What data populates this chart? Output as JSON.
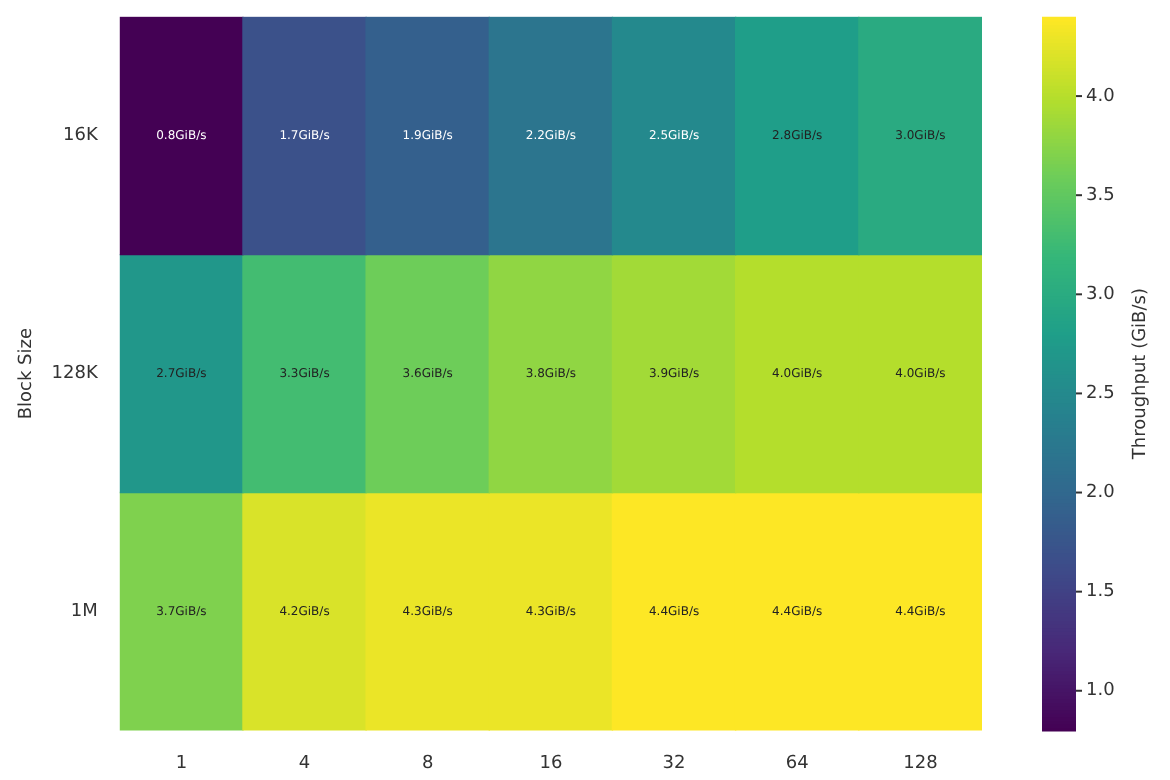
{
  "chart_data": {
    "type": "heatmap",
    "ylabel": "Block Size",
    "clabel": "Throughput (GiB/s)",
    "categories": [
      "1",
      "4",
      "8",
      "16",
      "32",
      "64",
      "128"
    ],
    "y_categories": [
      "16K",
      "128K",
      "1M"
    ],
    "cells": [
      [
        0.8,
        1.7,
        1.9,
        2.2,
        2.5,
        2.8,
        3.0
      ],
      [
        2.7,
        3.3,
        3.6,
        3.8,
        3.9,
        4.0,
        4.0
      ],
      [
        3.7,
        4.2,
        4.3,
        4.3,
        4.4,
        4.4,
        4.4
      ]
    ],
    "cell_labels": [
      [
        "0.8GiB/s",
        "1.7GiB/s",
        "1.9GiB/s",
        "2.2GiB/s",
        "2.5GiB/s",
        "2.8GiB/s",
        "3.0GiB/s"
      ],
      [
        "2.7GiB/s",
        "3.3GiB/s",
        "3.6GiB/s",
        "3.8GiB/s",
        "3.9GiB/s",
        "4.0GiB/s",
        "4.0GiB/s"
      ],
      [
        "3.7GiB/s",
        "4.2GiB/s",
        "4.3GiB/s",
        "4.3GiB/s",
        "4.4GiB/s",
        "4.4GiB/s",
        "4.4GiB/s"
      ]
    ],
    "clim": [
      0.8,
      4.4
    ],
    "cticks": [
      {
        "value": 1,
        "label": "1.0"
      },
      {
        "value": 1.5,
        "label": "1.5"
      },
      {
        "value": 2,
        "label": "2.0"
      },
      {
        "value": 2.5,
        "label": "2.5"
      },
      {
        "value": 3,
        "label": "3.0"
      },
      {
        "value": 3.5,
        "label": "3.5"
      },
      {
        "value": 4,
        "label": "4.0"
      }
    ]
  }
}
